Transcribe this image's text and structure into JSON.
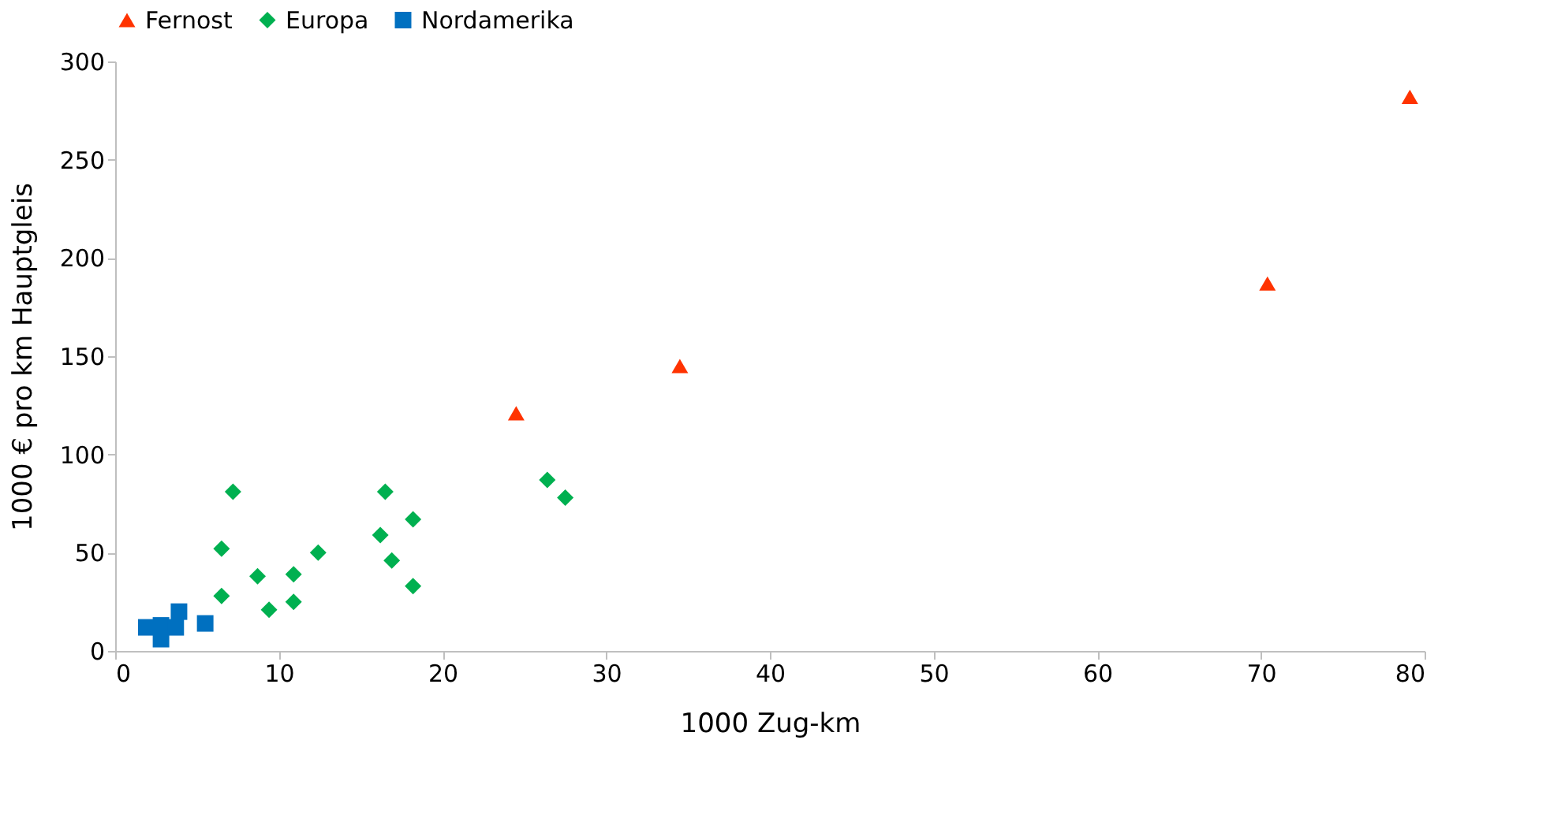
{
  "chart_data": {
    "type": "scatter",
    "xlabel": "1000 Zug-km",
    "ylabel": "1000 € pro km Hauptgleis",
    "xlim": [
      0,
      80
    ],
    "xticks": [
      0,
      10,
      20,
      30,
      40,
      50,
      60,
      70,
      80
    ],
    "ylim": [
      0,
      300
    ],
    "yticks": [
      0,
      50,
      100,
      150,
      200,
      250,
      300
    ],
    "grid": false,
    "legend": "top",
    "series": [
      {
        "name": "Fernost",
        "color": "#ff3300",
        "marker": "triangle",
        "x": [
          24.5,
          34.5,
          70.4,
          79.1
        ],
        "values": [
          121,
          145,
          187,
          282
        ]
      },
      {
        "name": "Europa",
        "color": "#00b050",
        "marker": "diamond",
        "x": [
          7.2,
          6.5,
          6.5,
          8.7,
          9.4,
          10.9,
          10.9,
          12.4,
          16.5,
          16.2,
          16.9,
          18.2,
          18.2,
          26.4,
          27.5
        ],
        "values": [
          81,
          52,
          28,
          38,
          21,
          39,
          25,
          50,
          81,
          59,
          46,
          67,
          33,
          87,
          78
        ]
      },
      {
        "name": "Nordamerika",
        "color": "#0070c0",
        "marker": "square",
        "x": [
          1.9,
          2.8,
          2.8,
          3.9,
          3.7,
          5.5
        ],
        "values": [
          12,
          6,
          13,
          20,
          12,
          14
        ]
      }
    ]
  }
}
